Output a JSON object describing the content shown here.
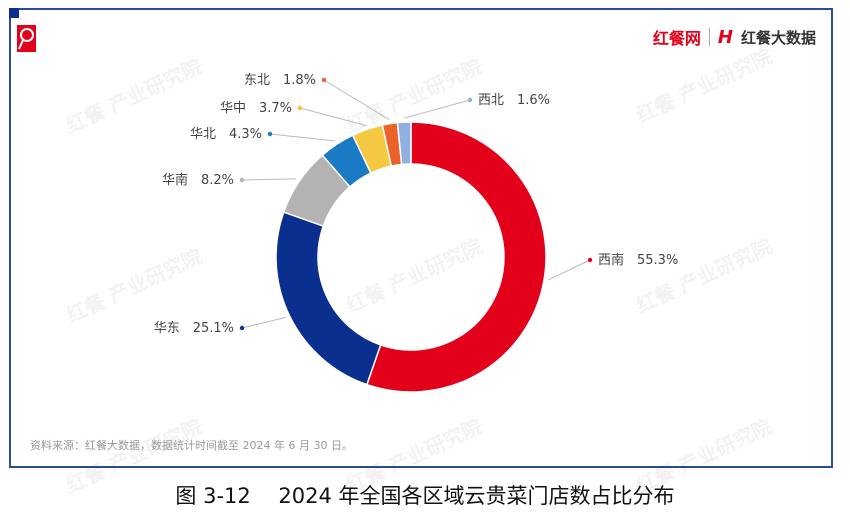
{
  "brand": {
    "name": "红餐网",
    "data_brand": "红餐大数据",
    "watermark": "红餐 产业研究院"
  },
  "source": "资料来源：红餐大数据，数据统计时间截至 2024 年 6 月 30 日。",
  "figure_title": "图 3-12　 2024 年全国各区域云贵菜门店数占比分布",
  "chart_data": {
    "type": "pie",
    "donut": true,
    "title": "",
    "unit": "%",
    "categories": [
      "西南",
      "华东",
      "华南",
      "华北",
      "华中",
      "东北",
      "西北"
    ],
    "values": [
      55.3,
      25.1,
      8.2,
      4.3,
      3.7,
      1.8,
      1.6
    ],
    "colors": [
      "#e3001b",
      "#0b2f8f",
      "#b3b3b3",
      "#1a7bc4",
      "#f5c842",
      "#e8622a",
      "#8fb0e0"
    ],
    "labels": [
      "西南　55.3%",
      "华东　25.1%",
      "华南　8.2%",
      "华北　4.3%",
      "华中　3.7%",
      "东北　1.8%",
      "西北　1.6%"
    ]
  }
}
